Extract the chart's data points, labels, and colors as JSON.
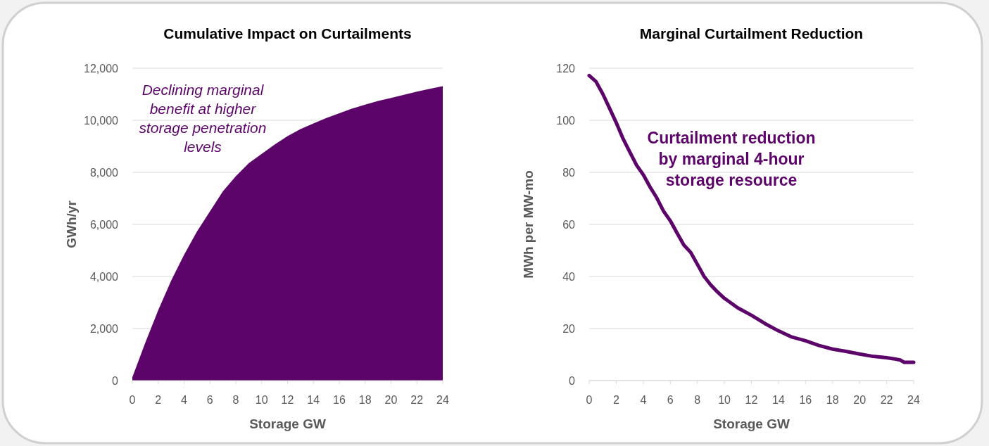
{
  "chart_data": [
    {
      "type": "area",
      "title": "Cumulative Impact on Curtailments",
      "xlabel": "Storage GW",
      "ylabel": "GWh/yr",
      "x": [
        0,
        1,
        2,
        3,
        4,
        5,
        6,
        7,
        8,
        9,
        10,
        11,
        12,
        13,
        14,
        15,
        16,
        17,
        18,
        19,
        20,
        21,
        22,
        23,
        24
      ],
      "series": [
        {
          "color": "#5c0469",
          "values": [
            130,
            1450,
            2700,
            3840,
            4830,
            5730,
            6500,
            7270,
            7850,
            8350,
            8710,
            9070,
            9390,
            9660,
            9880,
            10090,
            10270,
            10450,
            10600,
            10740,
            10860,
            10980,
            11100,
            11210,
            11310
          ]
        }
      ],
      "xlim": [
        0,
        24
      ],
      "xticks": [
        0,
        2,
        4,
        6,
        8,
        10,
        12,
        14,
        16,
        18,
        20,
        22,
        24
      ],
      "ylim": [
        0,
        12000
      ],
      "yticks": [
        0,
        {
          "value": 2000,
          "label": "2,000"
        },
        {
          "value": 4000,
          "label": "4,000"
        },
        {
          "value": 6000,
          "label": "6,000"
        },
        {
          "value": 8000,
          "label": "8,000"
        },
        {
          "value": 10000,
          "label": "10,000"
        },
        {
          "value": 12000,
          "label": "12,000"
        }
      ],
      "grid": "y",
      "annotations": [
        "Declining marginal benefit at higher storage penetration levels"
      ]
    },
    {
      "type": "line",
      "title": "Marginal Curtailment Reduction",
      "xlabel": "Storage GW",
      "ylabel": "MWh per MW-mo",
      "x": [
        0,
        0.5,
        1,
        1.5,
        2,
        2.5,
        3,
        3.5,
        4,
        4.5,
        5,
        5.5,
        6,
        6.5,
        7,
        7.5,
        8,
        8.5,
        9,
        9.5,
        10,
        11,
        12,
        13,
        14,
        15,
        16,
        17,
        18,
        19,
        20,
        21,
        22,
        22.5,
        23,
        23.3,
        24
      ],
      "series": [
        {
          "color": "#5c0469",
          "values": [
            117.2,
            114.9,
            110.2,
            104.7,
            99.1,
            93,
            87.9,
            82.8,
            79.1,
            74.4,
            70.2,
            65.1,
            61.4,
            56.7,
            52.1,
            49.3,
            44.7,
            40,
            36.7,
            34,
            31.6,
            27.9,
            25.1,
            21.9,
            19.1,
            16.7,
            15.3,
            13.5,
            12.1,
            11.2,
            10.2,
            9.3,
            8.8,
            8.4,
            7.9,
            7,
            7
          ]
        }
      ],
      "xlim": [
        0,
        24
      ],
      "xticks": [
        0,
        2,
        4,
        6,
        8,
        10,
        12,
        14,
        16,
        18,
        20,
        22,
        24
      ],
      "ylim": [
        0,
        120
      ],
      "yticks": [
        0,
        20,
        40,
        60,
        80,
        100,
        120
      ],
      "grid": "y",
      "marker": "none",
      "line_style": "solid",
      "annotations": [
        "Curtailment reduction by marginal 4-hour storage resource"
      ]
    }
  ]
}
